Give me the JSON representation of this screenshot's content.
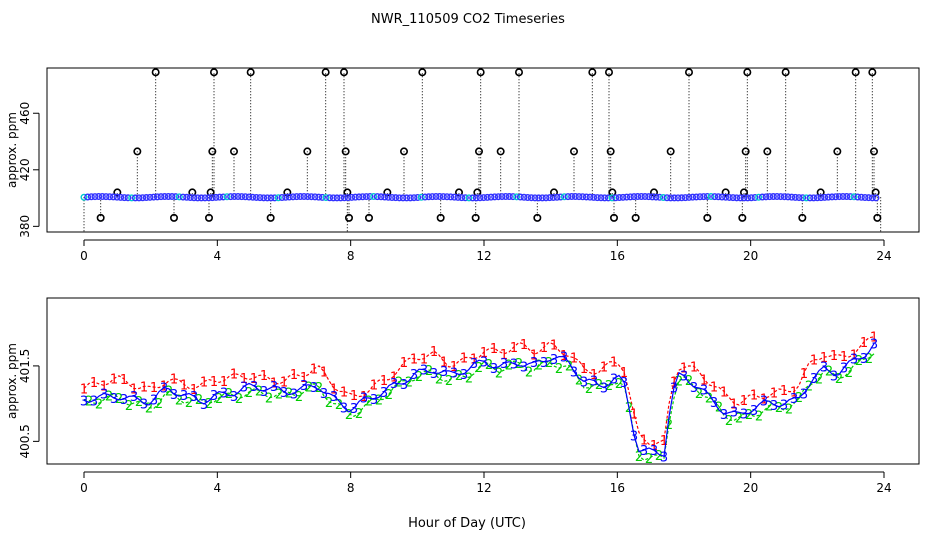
{
  "figure": {
    "title": "NWR_110509  CO2 Timeseries",
    "xlabel": "Hour of Day (UTC)"
  },
  "colors": {
    "series1": "#ff0000",
    "series2": "#00cc00",
    "series3": "#0000ff",
    "series3_points": "#3333ff",
    "cyan": "#00cccc",
    "outlier": "#000000"
  },
  "chart_data": [
    {
      "type": "scatter",
      "title": "",
      "xlabel": "",
      "ylabel": "approx. ppm",
      "xlim": [
        -0.2,
        24.3
      ],
      "ylim": [
        376,
        492
      ],
      "xticks": [
        0,
        4,
        8,
        12,
        16,
        20,
        24
      ],
      "xtick_labels": [
        "0",
        "4",
        "8",
        "12",
        "16",
        "20",
        "24"
      ],
      "yticks": [
        380,
        420,
        460
      ],
      "ytick_labels": [
        "380",
        "420",
        "460"
      ],
      "baseline": 400.6,
      "outliers": [
        {
          "x": 0.5,
          "y": 386
        },
        {
          "x": 1.0,
          "y": 404
        },
        {
          "x": 1.6,
          "y": 433
        },
        {
          "x": 2.15,
          "y": 489
        },
        {
          "x": 2.7,
          "y": 386
        },
        {
          "x": 3.25,
          "y": 404
        },
        {
          "x": 3.75,
          "y": 386
        },
        {
          "x": 3.8,
          "y": 404
        },
        {
          "x": 3.85,
          "y": 433
        },
        {
          "x": 3.9,
          "y": 489
        },
        {
          "x": 4.5,
          "y": 433
        },
        {
          "x": 5.0,
          "y": 489
        },
        {
          "x": 5.6,
          "y": 386
        },
        {
          "x": 6.1,
          "y": 404
        },
        {
          "x": 6.7,
          "y": 433
        },
        {
          "x": 7.25,
          "y": 489
        },
        {
          "x": 7.8,
          "y": 489
        },
        {
          "x": 7.85,
          "y": 433
        },
        {
          "x": 7.9,
          "y": 404
        },
        {
          "x": 7.95,
          "y": 386
        },
        {
          "x": 8.55,
          "y": 386
        },
        {
          "x": 9.1,
          "y": 404
        },
        {
          "x": 9.6,
          "y": 433
        },
        {
          "x": 10.15,
          "y": 489
        },
        {
          "x": 10.7,
          "y": 386
        },
        {
          "x": 11.25,
          "y": 404
        },
        {
          "x": 11.75,
          "y": 386
        },
        {
          "x": 11.8,
          "y": 404
        },
        {
          "x": 11.85,
          "y": 433
        },
        {
          "x": 11.9,
          "y": 489
        },
        {
          "x": 12.5,
          "y": 433
        },
        {
          "x": 13.05,
          "y": 489
        },
        {
          "x": 13.6,
          "y": 386
        },
        {
          "x": 14.1,
          "y": 404
        },
        {
          "x": 14.7,
          "y": 433
        },
        {
          "x": 15.25,
          "y": 489
        },
        {
          "x": 15.75,
          "y": 489
        },
        {
          "x": 15.8,
          "y": 433
        },
        {
          "x": 15.85,
          "y": 404
        },
        {
          "x": 15.9,
          "y": 386
        },
        {
          "x": 16.55,
          "y": 386
        },
        {
          "x": 17.1,
          "y": 404
        },
        {
          "x": 17.6,
          "y": 433
        },
        {
          "x": 18.15,
          "y": 489
        },
        {
          "x": 18.7,
          "y": 386
        },
        {
          "x": 19.25,
          "y": 404
        },
        {
          "x": 19.75,
          "y": 386
        },
        {
          "x": 19.8,
          "y": 404
        },
        {
          "x": 19.85,
          "y": 433
        },
        {
          "x": 19.9,
          "y": 489
        },
        {
          "x": 20.5,
          "y": 433
        },
        {
          "x": 21.05,
          "y": 489
        },
        {
          "x": 21.55,
          "y": 386
        },
        {
          "x": 22.1,
          "y": 404
        },
        {
          "x": 22.6,
          "y": 433
        },
        {
          "x": 23.15,
          "y": 489
        },
        {
          "x": 23.65,
          "y": 489
        },
        {
          "x": 23.7,
          "y": 433
        },
        {
          "x": 23.75,
          "y": 404
        },
        {
          "x": 23.8,
          "y": 386
        }
      ]
    },
    {
      "type": "line",
      "title": "",
      "xlabel": "Hour of Day (UTC)",
      "ylabel": "approx. ppm",
      "xlim": [
        -0.2,
        24.3
      ],
      "ylim": [
        400.2,
        402.4
      ],
      "xticks": [
        0,
        4,
        8,
        12,
        16,
        20,
        24
      ],
      "xtick_labels": [
        "0",
        "4",
        "8",
        "12",
        "16",
        "20",
        "24"
      ],
      "yticks": [
        400.5,
        401.5
      ],
      "ytick_labels": [
        "400.5",
        "401.5"
      ],
      "point_labels": [
        "1",
        "2",
        "3"
      ],
      "series": [
        {
          "name": "1",
          "color": "#ff0000",
          "offset": 0.15
        },
        {
          "name": "2",
          "color": "#00cc00",
          "offset": -0.07
        },
        {
          "name": "3",
          "color": "#0000ff",
          "offset": -0.02
        }
      ],
      "base_curve": {
        "x": [
          0,
          0.5,
          1,
          1.5,
          2,
          2.5,
          3,
          3.5,
          4,
          4.5,
          5,
          5.5,
          6,
          6.5,
          7,
          7.5,
          8,
          8.5,
          9,
          9.5,
          10,
          10.5,
          11,
          11.5,
          12,
          12.5,
          13,
          13.5,
          14,
          14.5,
          15,
          15.5,
          16,
          16.2,
          16.4,
          16.6,
          16.8,
          17,
          17.2,
          17.4,
          17.6,
          17.8,
          18,
          18.4,
          18.8,
          19.2,
          19.6,
          20,
          20.5,
          21,
          21.4,
          21.8,
          22.2,
          22.6,
          23,
          23.4,
          23.8
        ],
        "y": [
          401.05,
          401.1,
          401.15,
          401.1,
          401.05,
          401.2,
          401.1,
          401.05,
          401.15,
          401.2,
          401.25,
          401.2,
          401.15,
          401.2,
          401.3,
          401.1,
          400.95,
          401.05,
          401.15,
          401.3,
          401.45,
          401.5,
          401.4,
          401.45,
          401.55,
          401.5,
          401.6,
          401.55,
          401.65,
          401.55,
          401.3,
          401.25,
          401.4,
          401.3,
          400.9,
          400.45,
          400.4,
          400.38,
          400.36,
          400.35,
          401.0,
          401.35,
          401.35,
          401.25,
          401.1,
          400.95,
          400.88,
          400.95,
          401.0,
          401.0,
          401.05,
          401.35,
          401.5,
          401.45,
          401.55,
          401.65,
          401.8
        ]
      }
    }
  ]
}
